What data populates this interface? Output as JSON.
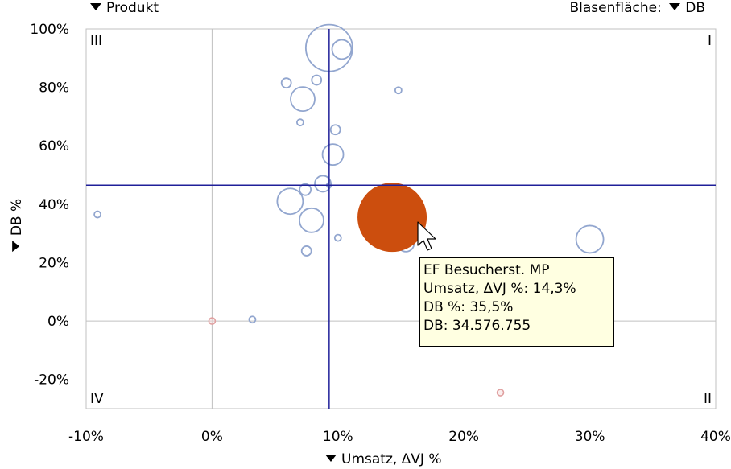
{
  "controls": {
    "dimension_label": "Produkt",
    "size_prefix": "Blasenfläche:",
    "size_measure": "DB"
  },
  "chart_data": {
    "type": "scatter",
    "xlabel": "Umsatz, ΔVJ %",
    "ylabel": "DB %",
    "xlim": [
      -10,
      40
    ],
    "ylim": [
      -30,
      100
    ],
    "x_ticks": [
      -10,
      0,
      10,
      20,
      30,
      40
    ],
    "y_ticks": [
      -20,
      0,
      20,
      40,
      60,
      80,
      100
    ],
    "x_tick_labels": [
      "-10%",
      "0%",
      "10%",
      "20%",
      "30%",
      "40%"
    ],
    "y_tick_labels": [
      "-20%",
      "0%",
      "20%",
      "40%",
      "60%",
      "80%",
      "100%"
    ],
    "grid": "zero-lines",
    "quadrant_labels": {
      "top_left": "III",
      "top_right": "I",
      "bottom_left": "IV",
      "bottom_right": "II"
    },
    "reference_lines": {
      "x": 9.3,
      "y": 46.5
    },
    "bubble_area_measure": "DB",
    "colors": {
      "bubble": "#92a6cf",
      "negative_bubble": "#e0a0a0",
      "highlight": "#cc4e0e",
      "reference": "#1f1f99",
      "zero_line": "#c0c0c0"
    },
    "points": [
      {
        "x": 9.3,
        "y": 93.5,
        "r": 29,
        "sign": "positive"
      },
      {
        "x": 10.3,
        "y": 93,
        "r": 12,
        "sign": "positive"
      },
      {
        "x": 5.9,
        "y": 81.5,
        "r": 6,
        "sign": "positive"
      },
      {
        "x": 8.3,
        "y": 82.5,
        "r": 6,
        "sign": "positive"
      },
      {
        "x": 14.8,
        "y": 79,
        "r": 4,
        "sign": "positive"
      },
      {
        "x": 7.2,
        "y": 76,
        "r": 15,
        "sign": "positive"
      },
      {
        "x": 7.0,
        "y": 68,
        "r": 4,
        "sign": "positive"
      },
      {
        "x": 9.8,
        "y": 65.5,
        "r": 6,
        "sign": "positive"
      },
      {
        "x": 9.6,
        "y": 57,
        "r": 13,
        "sign": "positive"
      },
      {
        "x": 8.8,
        "y": 47,
        "r": 10,
        "sign": "positive"
      },
      {
        "x": 9.3,
        "y": 46.5,
        "r": 3,
        "sign": "positive"
      },
      {
        "x": 7.4,
        "y": 45,
        "r": 7,
        "sign": "positive"
      },
      {
        "x": 6.2,
        "y": 41,
        "r": 16,
        "sign": "positive"
      },
      {
        "x": 7.9,
        "y": 34.5,
        "r": 15,
        "sign": "positive"
      },
      {
        "x": 10.0,
        "y": 28.5,
        "r": 4,
        "sign": "positive"
      },
      {
        "x": 7.5,
        "y": 24,
        "r": 6,
        "sign": "positive"
      },
      {
        "x": 15.4,
        "y": 26.5,
        "r": 10,
        "sign": "positive"
      },
      {
        "x": 30.0,
        "y": 28,
        "r": 17,
        "sign": "positive"
      },
      {
        "x": -9.1,
        "y": 36.5,
        "r": 4,
        "sign": "positive"
      },
      {
        "x": 3.2,
        "y": 0.5,
        "r": 4,
        "sign": "positive"
      },
      {
        "x": 0.0,
        "y": 0,
        "r": 4,
        "sign": "negative"
      },
      {
        "x": 22.9,
        "y": -24.5,
        "r": 4,
        "sign": "negative"
      },
      {
        "x": 14.3,
        "y": 35.5,
        "r": 43,
        "sign": "highlight",
        "name": "EF Besucherst. MP"
      }
    ]
  },
  "tooltip": {
    "title": "EF Besucherst. MP",
    "line1": "Umsatz, ΔVJ %: 14,3%",
    "line2": "DB %: 35,5%",
    "line3": "DB: 34.576.755"
  }
}
